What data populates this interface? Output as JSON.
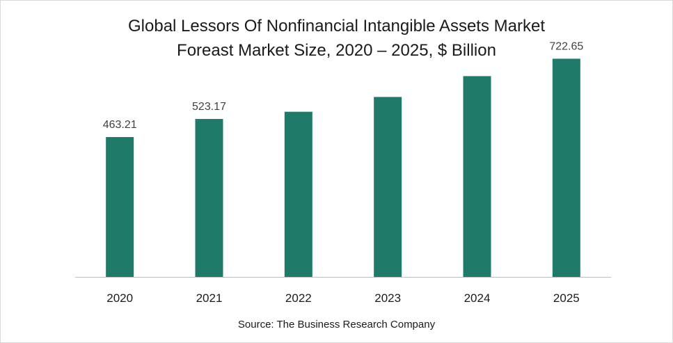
{
  "title_line1": "Global Lessors Of Nonfinancial Intangible Assets Market",
  "title_line2": "Foreast Market Size, 2020 – 2025, $ Billion",
  "source": "Source: The Business Research Company",
  "colors": {
    "bar": "#1f7a6a",
    "axis": "#bfbfbf",
    "text": "#1a1a1a",
    "label": "#404040"
  },
  "chart_data": {
    "type": "bar",
    "categories": [
      "2020",
      "2021",
      "2022",
      "2023",
      "2024",
      "2025"
    ],
    "values": [
      463.21,
      523.17,
      547,
      596,
      665,
      722.65
    ],
    "data_labels": [
      "463.21",
      "523.17",
      "",
      "",
      "",
      "722.65"
    ],
    "title": "Global Lessors Of Nonfinancial Intangible Assets Market Foreast Market Size, 2020 – 2025, $ Billion",
    "xlabel": "",
    "ylabel": "",
    "ylim": [
      0,
      795
    ],
    "grid": false,
    "legend": "none"
  }
}
